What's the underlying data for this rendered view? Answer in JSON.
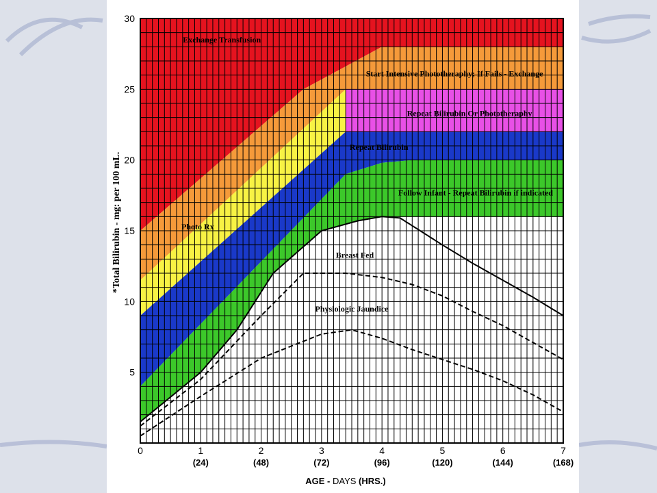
{
  "chart_data": {
    "type": "area",
    "title": "",
    "xlabel": {
      "prefix": "AGE - ",
      "middle": "DAYS ",
      "suffix": "(HRS.)"
    },
    "ylabel": "*Total Bilirubin - mg: per 100 mL.",
    "xlim": [
      0,
      7
    ],
    "ylim": [
      0,
      30
    ],
    "grid": true,
    "x_ticks": [
      {
        "value": 0,
        "label": "0",
        "hours": ""
      },
      {
        "value": 1,
        "label": "1",
        "hours": "(24)"
      },
      {
        "value": 2,
        "label": "2",
        "hours": "(48)"
      },
      {
        "value": 3,
        "label": "3",
        "hours": "(72)"
      },
      {
        "value": 4,
        "label": "4",
        "hours": "(96)"
      },
      {
        "value": 5,
        "label": "5",
        "hours": "(120)"
      },
      {
        "value": 6,
        "label": "6",
        "hours": "(144)"
      },
      {
        "value": 7,
        "label": "7",
        "hours": "(168)"
      }
    ],
    "y_ticks": [
      {
        "value": 5,
        "label": "5"
      },
      {
        "value": 10,
        "label": "10"
      },
      {
        "value": 15,
        "label": "15"
      },
      {
        "value": 20,
        "label": "20"
      },
      {
        "value": 25,
        "label": "25"
      },
      {
        "value": 30,
        "label": "30"
      }
    ],
    "boundaries": {
      "red_lower": [
        [
          0,
          15
        ],
        [
          2.7,
          25
        ],
        [
          4,
          28
        ],
        [
          7,
          28
        ]
      ],
      "orange_lower": [
        [
          0,
          11.5
        ],
        [
          3.4,
          25
        ],
        [
          7,
          25
        ]
      ],
      "magenta_lower": [
        [
          0,
          9
        ],
        [
          3.4,
          22
        ],
        [
          7,
          22
        ]
      ],
      "blue_lower": [
        [
          0,
          4
        ],
        [
          3.4,
          19
        ],
        [
          4,
          19.8
        ],
        [
          4.5,
          20
        ],
        [
          7,
          20
        ]
      ],
      "green_lower": [
        [
          0,
          1.5
        ],
        [
          1,
          5
        ],
        [
          1.6,
          8
        ],
        [
          2.2,
          12
        ],
        [
          3,
          15
        ],
        [
          3.6,
          15.7
        ],
        [
          4,
          16
        ],
        [
          7,
          16
        ]
      ],
      "breast_fed": [
        [
          0,
          1.5
        ],
        [
          1,
          5
        ],
        [
          1.6,
          8
        ],
        [
          2.2,
          12
        ],
        [
          3,
          15
        ],
        [
          3.6,
          15.7
        ],
        [
          4,
          16
        ],
        [
          4.3,
          15.9
        ],
        [
          5,
          14
        ],
        [
          5.5,
          12.7
        ],
        [
          6,
          11.5
        ],
        [
          6.5,
          10.3
        ],
        [
          7,
          9
        ]
      ],
      "physiologic_upper": [
        [
          0,
          1.2
        ],
        [
          1,
          4.5
        ],
        [
          2,
          9
        ],
        [
          2.7,
          12
        ],
        [
          3.4,
          12
        ],
        [
          4,
          11.7
        ],
        [
          4.5,
          11.2
        ],
        [
          5,
          10.4
        ],
        [
          5.5,
          9.3
        ],
        [
          6,
          8.3
        ],
        [
          6.5,
          7.1
        ],
        [
          7,
          5.9
        ]
      ],
      "physiologic_lower": [
        [
          0,
          0.5
        ],
        [
          1,
          3.3
        ],
        [
          2,
          6
        ],
        [
          3,
          7.7
        ],
        [
          3.5,
          8
        ],
        [
          4,
          7.4
        ],
        [
          4.5,
          6.6
        ],
        [
          5,
          5.9
        ],
        [
          5.5,
          5.2
        ],
        [
          6,
          4.4
        ],
        [
          6.5,
          3.4
        ],
        [
          7,
          2.2
        ]
      ]
    },
    "colors": {
      "red": "#e5131f",
      "orange": "#f59a3a",
      "magenta": "#e850e6",
      "yellow": "#f8f244",
      "blue": "#1a39c9",
      "green": "#3cc82a",
      "white": "#ffffff",
      "grid": "#000000"
    },
    "annotations": [
      {
        "text": "Exchange Transfusion",
        "x": 1.35,
        "y": 28.3
      },
      {
        "text": "Start Intensive Phototheraphy; If Fails - Exchange",
        "x": 5.2,
        "y": 25.9
      },
      {
        "text": "Repeat Bilirubin Or Phototheraphy",
        "x": 5.45,
        "y": 23.1
      },
      {
        "text": "Repeat Bilirubin",
        "x": 3.95,
        "y": 20.7
      },
      {
        "text": "Photo Rx",
        "x": 0.95,
        "y": 15.1
      },
      {
        "text": "Follow Infant - Repeat Bilirubin if indicated",
        "x": 5.55,
        "y": 17.5
      },
      {
        "text": "Breast Fed",
        "x": 3.55,
        "y": 13.1
      },
      {
        "text": "Physiologic Jaundice",
        "x": 3.5,
        "y": 9.3
      }
    ]
  }
}
